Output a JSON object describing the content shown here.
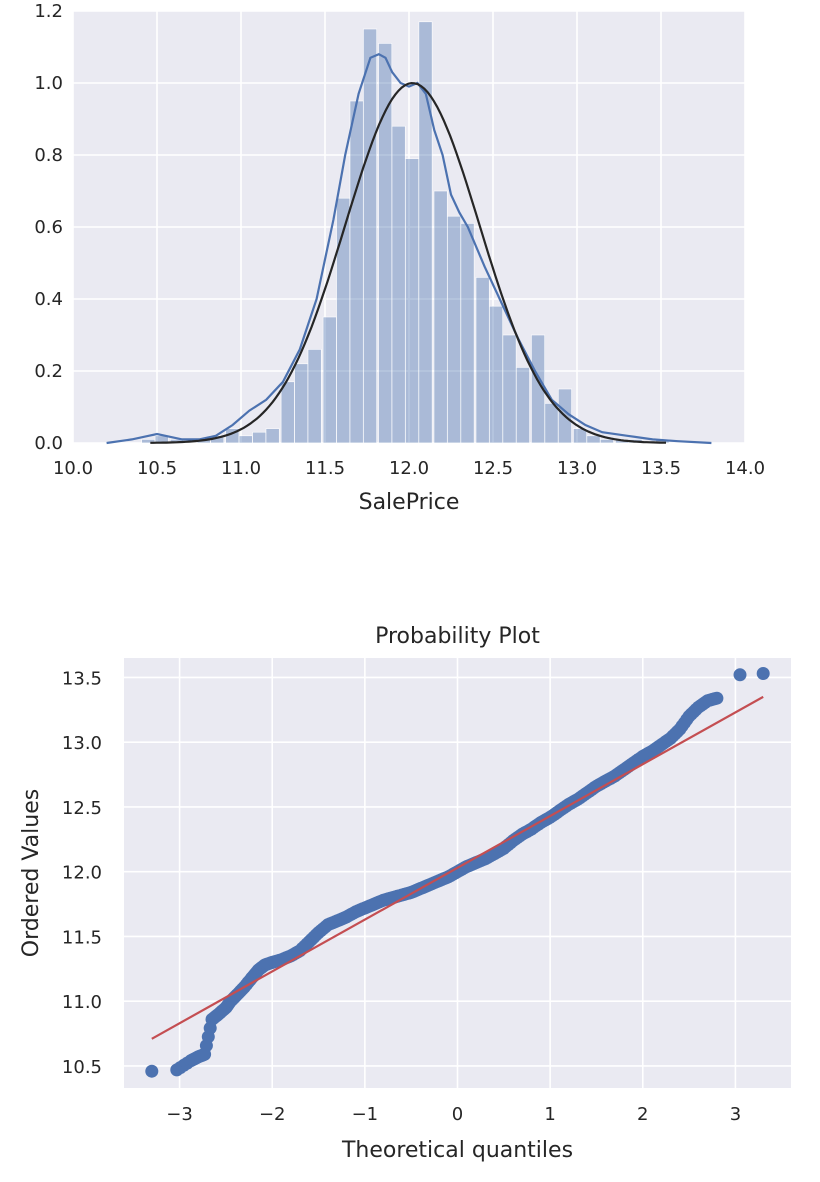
{
  "chart_data": [
    {
      "type": "bar",
      "subtype": "histogram_with_kde_and_normal_fit",
      "title": "",
      "xlabel": "SalePrice",
      "ylabel": "",
      "xlim": [
        10.0,
        14.0
      ],
      "ylim": [
        0.0,
        1.2
      ],
      "x_ticks": [
        "10.0",
        "10.5",
        "11.0",
        "11.5",
        "12.0",
        "12.5",
        "13.0",
        "13.5",
        "14.0"
      ],
      "y_ticks": [
        "0.0",
        "0.2",
        "0.4",
        "0.6",
        "0.8",
        "1.0",
        "1.2"
      ],
      "grid": true,
      "legend": "none",
      "bin_width": 0.0825,
      "bins": [
        {
          "x": 10.45,
          "y": 0.01
        },
        {
          "x": 10.53,
          "y": 0.02
        },
        {
          "x": 10.62,
          "y": 0.01
        },
        {
          "x": 10.7,
          "y": 0.0
        },
        {
          "x": 10.78,
          "y": 0.01
        },
        {
          "x": 10.86,
          "y": 0.02
        },
        {
          "x": 10.95,
          "y": 0.04
        },
        {
          "x": 11.03,
          "y": 0.02
        },
        {
          "x": 11.11,
          "y": 0.03
        },
        {
          "x": 11.19,
          "y": 0.04
        },
        {
          "x": 11.28,
          "y": 0.17
        },
        {
          "x": 11.36,
          "y": 0.22
        },
        {
          "x": 11.44,
          "y": 0.26
        },
        {
          "x": 11.53,
          "y": 0.35
        },
        {
          "x": 11.61,
          "y": 0.68
        },
        {
          "x": 11.69,
          "y": 0.95
        },
        {
          "x": 11.77,
          "y": 1.15
        },
        {
          "x": 11.86,
          "y": 1.11
        },
        {
          "x": 11.94,
          "y": 0.88
        },
        {
          "x": 12.02,
          "y": 0.79
        },
        {
          "x": 12.1,
          "y": 1.17
        },
        {
          "x": 12.19,
          "y": 0.7
        },
        {
          "x": 12.27,
          "y": 0.63
        },
        {
          "x": 12.35,
          "y": 0.61
        },
        {
          "x": 12.44,
          "y": 0.46
        },
        {
          "x": 12.52,
          "y": 0.38
        },
        {
          "x": 12.6,
          "y": 0.3
        },
        {
          "x": 12.68,
          "y": 0.21
        },
        {
          "x": 12.77,
          "y": 0.3
        },
        {
          "x": 12.85,
          "y": 0.11
        },
        {
          "x": 12.93,
          "y": 0.15
        },
        {
          "x": 13.02,
          "y": 0.04
        },
        {
          "x": 13.1,
          "y": 0.02
        },
        {
          "x": 13.18,
          "y": 0.01
        },
        {
          "x": 13.27,
          "y": 0.01
        },
        {
          "x": 13.35,
          "y": 0.01
        },
        {
          "x": 13.43,
          "y": 0.0
        },
        {
          "x": 13.51,
          "y": 0.01
        }
      ],
      "series": [
        {
          "kind": "kde",
          "color": "#4c72b0",
          "x": [
            10.2,
            10.35,
            10.45,
            10.5,
            10.55,
            10.65,
            10.75,
            10.85,
            10.95,
            11.05,
            11.15,
            11.25,
            11.35,
            11.45,
            11.55,
            11.62,
            11.7,
            11.77,
            11.82,
            11.86,
            11.9,
            11.95,
            12.0,
            12.05,
            12.1,
            12.15,
            12.2,
            12.25,
            12.3,
            12.35,
            12.45,
            12.55,
            12.65,
            12.75,
            12.85,
            12.95,
            13.05,
            13.15,
            13.3,
            13.45,
            13.6,
            13.8
          ],
          "y": [
            0.0,
            0.01,
            0.02,
            0.025,
            0.02,
            0.01,
            0.01,
            0.02,
            0.05,
            0.09,
            0.12,
            0.17,
            0.26,
            0.4,
            0.62,
            0.8,
            0.97,
            1.07,
            1.08,
            1.07,
            1.03,
            1.0,
            0.99,
            1.0,
            0.97,
            0.87,
            0.8,
            0.69,
            0.64,
            0.6,
            0.49,
            0.39,
            0.29,
            0.2,
            0.12,
            0.08,
            0.05,
            0.03,
            0.02,
            0.01,
            0.005,
            0.0
          ]
        },
        {
          "kind": "normal_fit",
          "color": "#262626",
          "mean": 12.02,
          "std": 0.399,
          "x_range": [
            10.46,
            13.53
          ]
        }
      ]
    },
    {
      "type": "scatter",
      "subtype": "probability_plot",
      "title": "Probability Plot",
      "xlabel": "Theoretical quantiles",
      "ylabel": "Ordered Values",
      "xlim": [
        -3.6,
        3.6
      ],
      "ylim": [
        10.33,
        13.65
      ],
      "x_ticks": [
        {
          "v": -3,
          "label": "−3"
        },
        {
          "v": -2,
          "label": "−2"
        },
        {
          "v": -1,
          "label": "−1"
        },
        {
          "v": 0,
          "label": "0"
        },
        {
          "v": 1,
          "label": "1"
        },
        {
          "v": 2,
          "label": "2"
        },
        {
          "v": 3,
          "label": "3"
        }
      ],
      "y_ticks": [
        {
          "v": 10.5,
          "label": "10.5"
        },
        {
          "v": 11.0,
          "label": "11.0"
        },
        {
          "v": 11.5,
          "label": "11.5"
        },
        {
          "v": 12.0,
          "label": "12.0"
        },
        {
          "v": 12.5,
          "label": "12.5"
        },
        {
          "v": 13.0,
          "label": "13.0"
        },
        {
          "v": 13.5,
          "label": "13.5"
        }
      ],
      "grid": true,
      "legend": "none",
      "point_color": "#4c72b0",
      "fit_color": "#c44e52",
      "fit_line": {
        "x": [
          -3.3,
          3.3
        ],
        "y": [
          10.71,
          13.35
        ]
      },
      "points": {
        "x": [
          -3.3,
          -3.03,
          -2.88,
          -2.8,
          -2.73,
          -2.65,
          -2.58,
          -2.5,
          -2.45,
          -2.38,
          -2.3,
          -2.22,
          -2.15,
          -2.08,
          -2.0,
          -1.9,
          -1.8,
          -1.7,
          -1.6,
          -1.5,
          -1.4,
          -1.3,
          -1.2,
          -1.1,
          -1.0,
          -0.9,
          -0.8,
          -0.7,
          -0.6,
          -0.5,
          -0.4,
          -0.3,
          -0.2,
          -0.1,
          0.0,
          0.1,
          0.2,
          0.3,
          0.4,
          0.5,
          0.6,
          0.7,
          0.8,
          0.9,
          1.0,
          1.1,
          1.2,
          1.3,
          1.4,
          1.5,
          1.6,
          1.7,
          1.8,
          1.9,
          2.0,
          2.1,
          2.2,
          2.3,
          2.4,
          2.5,
          2.6,
          2.7,
          2.8,
          3.05,
          3.3
        ],
        "y": [
          10.46,
          10.47,
          10.54,
          10.57,
          10.59,
          10.86,
          10.9,
          10.95,
          11.0,
          11.05,
          11.11,
          11.18,
          11.24,
          11.28,
          11.3,
          11.32,
          11.35,
          11.39,
          11.46,
          11.53,
          11.59,
          11.62,
          11.65,
          11.69,
          11.72,
          11.75,
          11.78,
          11.8,
          11.82,
          11.84,
          11.87,
          11.9,
          11.93,
          11.96,
          12.0,
          12.04,
          12.07,
          12.1,
          12.14,
          12.18,
          12.24,
          12.29,
          12.33,
          12.38,
          12.42,
          12.47,
          12.52,
          12.56,
          12.61,
          12.66,
          12.7,
          12.74,
          12.79,
          12.84,
          12.89,
          12.93,
          12.98,
          13.03,
          13.1,
          13.2,
          13.27,
          13.32,
          13.34,
          13.52,
          13.53
        ]
      }
    }
  ]
}
